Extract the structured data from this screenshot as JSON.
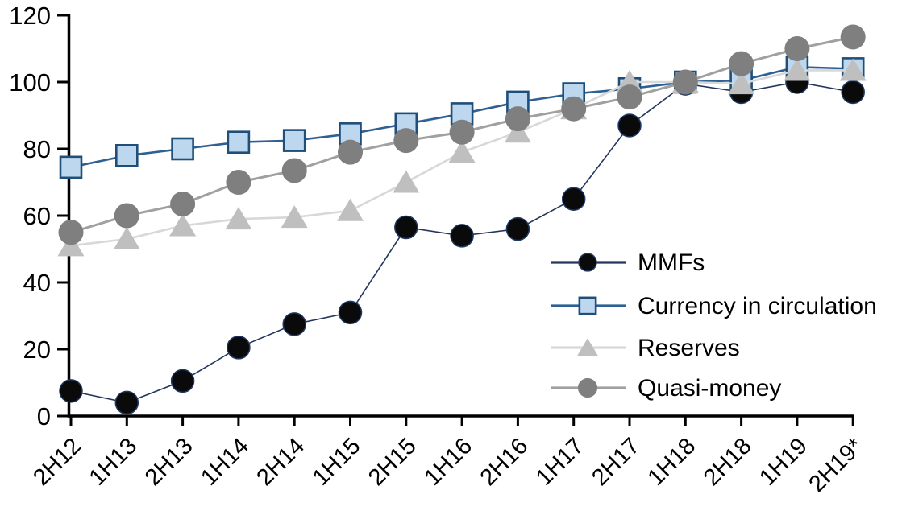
{
  "chart_data": {
    "type": "line",
    "title": "",
    "xlabel": "",
    "ylabel": "",
    "ylim": [
      0,
      120
    ],
    "yticks": [
      0,
      20,
      40,
      60,
      80,
      100,
      120
    ],
    "grid": false,
    "legend_position": "inside-right",
    "categories": [
      "2H12",
      "1H13",
      "2H13",
      "1H14",
      "2H14",
      "1H15",
      "2H15",
      "1H16",
      "2H16",
      "1H17",
      "2H17",
      "1H18",
      "2H18",
      "1H19",
      "2H19*"
    ],
    "series": [
      {
        "name": "MMFs",
        "marker": "circle",
        "line_color": "#24365e",
        "marker_fill": "#0a0a0a",
        "marker_stroke": "#1f3864",
        "values": [
          7.5,
          4,
          10.5,
          20.5,
          27.5,
          31,
          56.5,
          54,
          56,
          65,
          87,
          99.5,
          97,
          100,
          97
        ]
      },
      {
        "name": "Currency in circulation",
        "marker": "square",
        "line_color": "#2e6093",
        "marker_fill": "#bdd7ee",
        "marker_stroke": "#1f4e79",
        "values": [
          74.5,
          78,
          80,
          82,
          82.5,
          84.5,
          87.5,
          90.5,
          94,
          96.5,
          98,
          100,
          100.5,
          104.5,
          104
        ]
      },
      {
        "name": "Reserves",
        "marker": "triangle",
        "line_color": "#d8d8d8",
        "marker_fill": "#bfbfbf",
        "marker_stroke": "#bfbfbf",
        "values": [
          51,
          53,
          57,
          59,
          59.5,
          61.5,
          70,
          79,
          85,
          92,
          100,
          100,
          99.5,
          103.5,
          103.5
        ]
      },
      {
        "name": "Quasi-money",
        "marker": "circle",
        "line_color": "#a0a0a0",
        "marker_fill": "#7f7f7f",
        "marker_stroke": "#7f7f7f",
        "values": [
          55,
          60,
          63.5,
          70,
          73.5,
          79,
          82.5,
          85,
          89,
          92,
          95.5,
          100,
          105.5,
          110,
          113.5
        ]
      }
    ]
  }
}
